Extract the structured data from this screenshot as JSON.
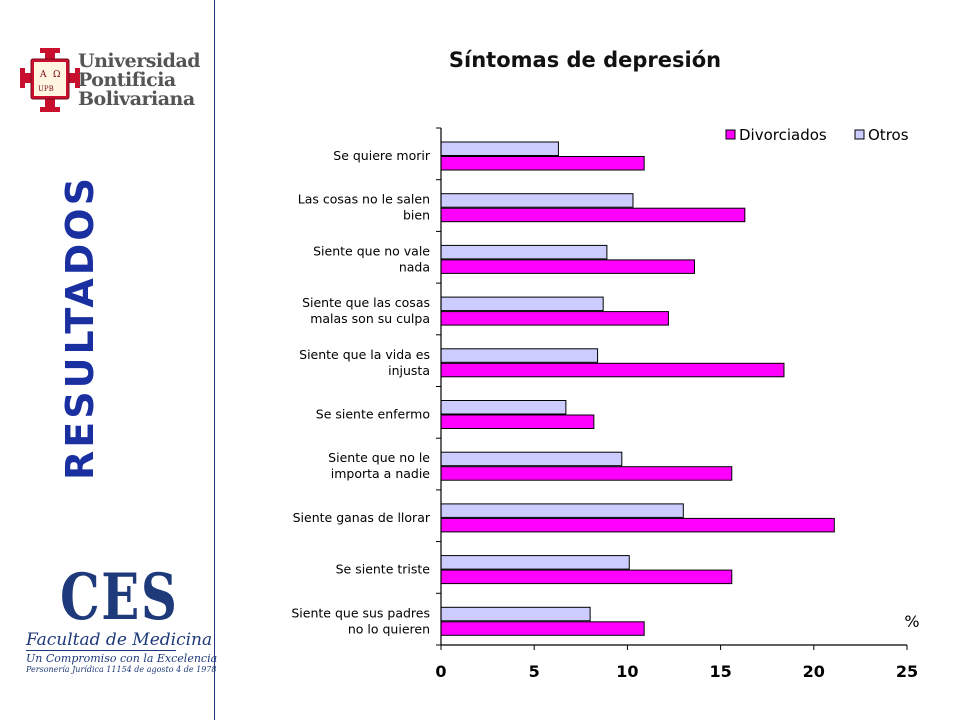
{
  "sidebar": {
    "university": [
      "Universidad",
      "Pontificia",
      "Bolivariana"
    ],
    "seal_text": {
      "alpha": "Α",
      "omega": "Ω",
      "initials": "UPB"
    },
    "section_label": "RESULTADOS",
    "ces": {
      "acronym": "CES",
      "faculty": "Facultad de Medicina",
      "motto": "Un Compromiso con la Excelencia",
      "legal": "Personería Jurídica 11154 de agosto 4 de 1978"
    }
  },
  "colors": {
    "divorciados": "#FF00FF",
    "otros": "#CCCCFF",
    "accent": "#1a2fa0"
  },
  "chart_data": {
    "type": "bar",
    "orientation": "horizontal",
    "title": "Síntomas de depresión",
    "categories": [
      "Se quiere morir",
      "Las cosas no le salen bien",
      "Siente que no vale nada",
      "Siente que las cosas malas son su culpa",
      "Siente que la vida es injusta",
      "Se siente enfermo",
      "Siente que no le importa a nadie",
      "Siente ganas de llorar",
      "Se siente triste",
      "Siente que sus padres no lo quieren"
    ],
    "category_lines": [
      [
        "Se quiere morir"
      ],
      [
        "Las cosas no le salen",
        "bien"
      ],
      [
        "Siente que no vale",
        "nada"
      ],
      [
        "Siente que las cosas",
        "malas son su culpa"
      ],
      [
        "Siente que la vida es",
        "injusta"
      ],
      [
        "Se siente enfermo"
      ],
      [
        "Siente que no le",
        "importa a nadie"
      ],
      [
        "Siente ganas de llorar"
      ],
      [
        "Se siente triste"
      ],
      [
        "Siente que sus padres",
        "no lo quieren"
      ]
    ],
    "series": [
      {
        "name": "Divorciados",
        "values": [
          10.9,
          16.3,
          13.6,
          12.2,
          18.4,
          8.2,
          15.6,
          21.1,
          15.6,
          10.9
        ]
      },
      {
        "name": "Otros",
        "values": [
          6.3,
          10.3,
          8.9,
          8.7,
          8.4,
          6.7,
          9.7,
          13.0,
          10.1,
          8.0
        ]
      }
    ],
    "xlim": [
      0,
      25
    ],
    "xticks": [
      0,
      5,
      10,
      15,
      20,
      25
    ],
    "unit": "%",
    "legend_position": "top-right",
    "grid": false
  }
}
